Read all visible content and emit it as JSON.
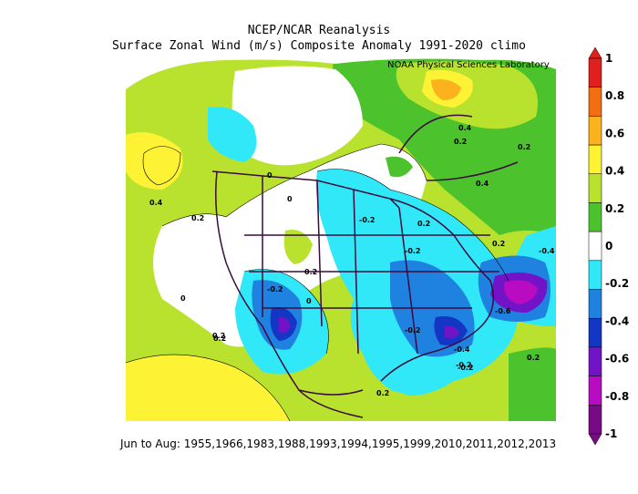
{
  "header": {
    "title_line1": "NCEP/NCAR Reanalysis",
    "title_line2": "Surface Zonal Wind (m/s) Composite Anomaly 1991-2020 climo",
    "lab_label": "NOAA Physical Sciences Laboratory"
  },
  "footer": {
    "composite": "Jun to Aug: 1955,1966,1983,1988,1993,1994,1995,1999,2010,2011,2012,2013"
  },
  "colorbar": {
    "ticks": [
      "1",
      "0.8",
      "0.6",
      "0.4",
      "0.2",
      "0",
      "-0.2",
      "-0.4",
      "-0.6",
      "-0.8",
      "-1"
    ],
    "colors": [
      "#e0201c",
      "#f26e12",
      "#fbb21d",
      "#fef235",
      "#b8e22d",
      "#4cc22c",
      "#ffffff",
      "#30e8f8",
      "#1f82e0",
      "#1436c4",
      "#7313c8",
      "#b90cc2",
      "#780a86"
    ]
  },
  "contour_labels": [
    "0.4",
    "0.2",
    "0.2",
    "0.4",
    "0.2",
    "0.4",
    "0.2",
    "0",
    "0",
    "0",
    "0.2",
    "-0.2",
    "-0.2",
    "-0.2",
    "-0.4",
    "-0.6",
    "-0.2",
    "0.2",
    "0",
    "-0.2",
    "-0.4",
    "-0.2",
    "0.2",
    "0.2",
    "0.2",
    "0.2"
  ]
}
